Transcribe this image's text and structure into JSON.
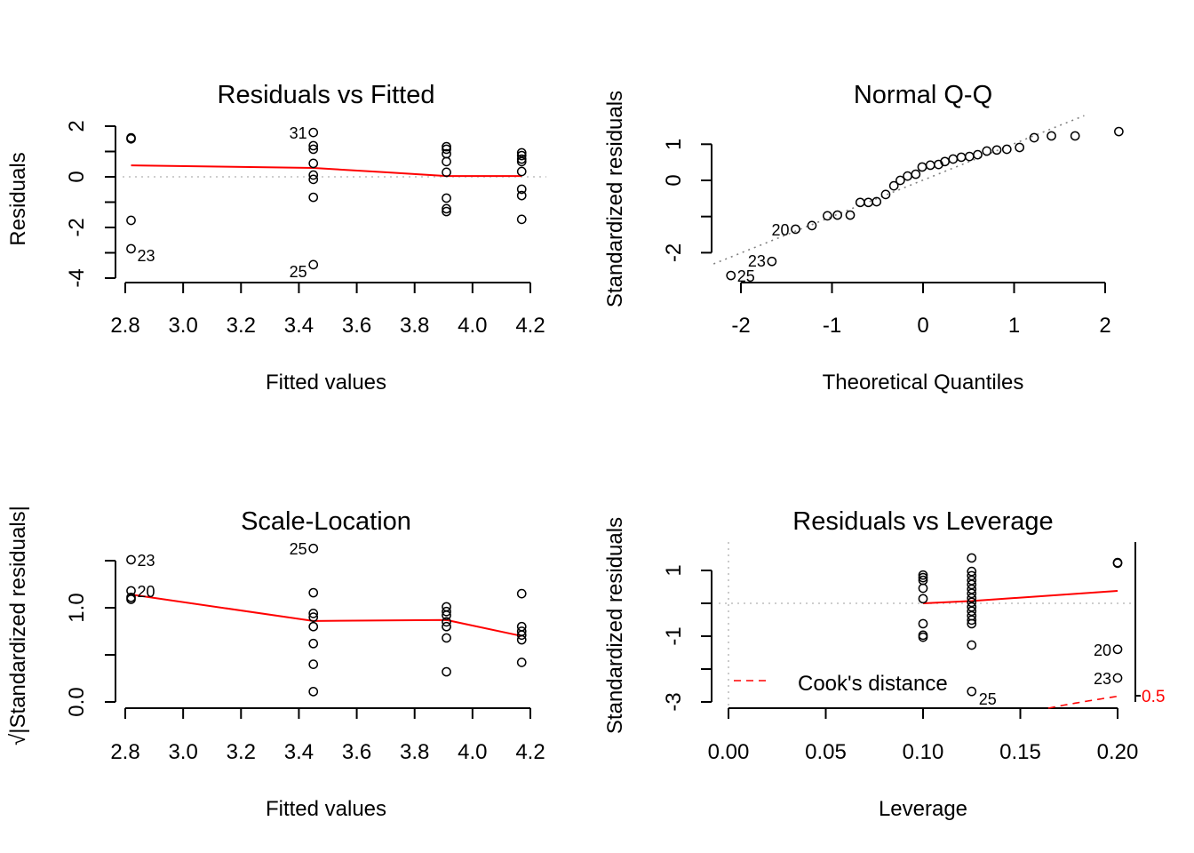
{
  "chart_data": [
    {
      "type": "scatter",
      "title": "Residuals vs Fitted",
      "xlabel": "Fitted values",
      "ylabel": "Residuals",
      "xticks": [
        2.8,
        3.0,
        3.2,
        3.4,
        3.6,
        3.8,
        4.0,
        4.2
      ],
      "xtick_labels": [
        "2.8",
        "3.0",
        "3.2",
        "3.4",
        "3.6",
        "3.8",
        "4.0",
        "4.2"
      ],
      "yticks": [
        -4,
        -3,
        -2,
        -1,
        0,
        1,
        2
      ],
      "ytick_labels": [
        "-4",
        "",
        "-2",
        "",
        "0",
        "",
        "2"
      ],
      "reference_line": {
        "y": 0,
        "style": "dotted",
        "color": "#bebebe"
      },
      "smoother": {
        "color": "#ff0000",
        "x": [
          2.82,
          3.15,
          3.45,
          3.7,
          3.91,
          4.17
        ],
        "y": [
          0.45,
          0.4,
          0.35,
          0.18,
          0.03,
          0.03
        ]
      },
      "points": [
        {
          "x": 2.82,
          "y": 1.54
        },
        {
          "x": 2.82,
          "y": 1.5
        },
        {
          "x": 2.82,
          "y": -1.72
        },
        {
          "x": 2.82,
          "y": -2.84,
          "label": "23"
        },
        {
          "x": 3.45,
          "y": 1.75,
          "label": "31"
        },
        {
          "x": 3.45,
          "y": 1.23
        },
        {
          "x": 3.45,
          "y": 1.09
        },
        {
          "x": 3.45,
          "y": 0.53
        },
        {
          "x": 3.45,
          "y": 0.07
        },
        {
          "x": 3.45,
          "y": -0.1
        },
        {
          "x": 3.45,
          "y": -0.81
        },
        {
          "x": 3.45,
          "y": -3.47,
          "label": "25"
        },
        {
          "x": 3.91,
          "y": 1.19
        },
        {
          "x": 3.91,
          "y": 1.09
        },
        {
          "x": 3.91,
          "y": 0.91
        },
        {
          "x": 3.91,
          "y": 0.6
        },
        {
          "x": 3.91,
          "y": 0.18
        },
        {
          "x": 3.91,
          "y": -0.84
        },
        {
          "x": 3.91,
          "y": -1.26
        },
        {
          "x": 3.91,
          "y": -1.37
        },
        {
          "x": 4.17,
          "y": 0.95
        },
        {
          "x": 4.17,
          "y": 0.84
        },
        {
          "x": 4.17,
          "y": 0.7
        },
        {
          "x": 4.17,
          "y": 0.6
        },
        {
          "x": 4.17,
          "y": 0.21
        },
        {
          "x": 4.17,
          "y": -0.49
        },
        {
          "x": 4.17,
          "y": -0.74
        },
        {
          "x": 4.17,
          "y": -1.68
        }
      ]
    },
    {
      "type": "scatter",
      "title": "Normal Q-Q",
      "xlabel": "Theoretical Quantiles",
      "ylabel": "Standardized residuals",
      "xticks": [
        -2,
        -1,
        0,
        1,
        2
      ],
      "xtick_labels": [
        "-2",
        "-1",
        "0",
        "1",
        "2"
      ],
      "yticks": [
        -2,
        -1,
        0,
        1
      ],
      "ytick_labels": [
        "-2",
        "",
        "0",
        "1"
      ],
      "reference_line": {
        "x": [
          -2.3,
          1.77
        ],
        "y": [
          -2.31,
          1.79
        ],
        "style": "dotted",
        "color": "#808080"
      },
      "points": [
        {
          "x": -2.11,
          "y": -2.63,
          "label": "25"
        },
        {
          "x": -1.66,
          "y": -2.24,
          "label": "23"
        },
        {
          "x": -1.4,
          "y": -1.35,
          "label": "20"
        },
        {
          "x": -1.22,
          "y": -1.25
        },
        {
          "x": -1.05,
          "y": -0.98
        },
        {
          "x": -0.94,
          "y": -0.96
        },
        {
          "x": -0.8,
          "y": -0.96
        },
        {
          "x": -0.69,
          "y": -0.61
        },
        {
          "x": -0.6,
          "y": -0.61
        },
        {
          "x": -0.51,
          "y": -0.59
        },
        {
          "x": -0.41,
          "y": -0.39
        },
        {
          "x": -0.32,
          "y": -0.15
        },
        {
          "x": -0.25,
          "y": 0.0
        },
        {
          "x": -0.17,
          "y": 0.12
        },
        {
          "x": -0.08,
          "y": 0.17
        },
        {
          "x": -0.01,
          "y": 0.37
        },
        {
          "x": 0.08,
          "y": 0.42
        },
        {
          "x": 0.17,
          "y": 0.44
        },
        {
          "x": 0.24,
          "y": 0.52
        },
        {
          "x": 0.33,
          "y": 0.59
        },
        {
          "x": 0.42,
          "y": 0.64
        },
        {
          "x": 0.51,
          "y": 0.66
        },
        {
          "x": 0.6,
          "y": 0.71
        },
        {
          "x": 0.7,
          "y": 0.81
        },
        {
          "x": 0.81,
          "y": 0.84
        },
        {
          "x": 0.92,
          "y": 0.86
        },
        {
          "x": 1.06,
          "y": 0.91
        },
        {
          "x": 1.22,
          "y": 1.18
        },
        {
          "x": 1.41,
          "y": 1.23
        },
        {
          "x": 1.67,
          "y": 1.23
        },
        {
          "x": 2.15,
          "y": 1.35
        }
      ]
    },
    {
      "type": "scatter",
      "title": "Scale-Location",
      "xlabel": "Fitted values",
      "ylabel": "√|Standardized residuals|",
      "xticks": [
        2.8,
        3.0,
        3.2,
        3.4,
        3.6,
        3.8,
        4.0,
        4.2
      ],
      "xtick_labels": [
        "2.8",
        "3.0",
        "3.2",
        "3.4",
        "3.6",
        "3.8",
        "4.0",
        "4.2"
      ],
      "yticks": [
        0,
        0.5,
        1.0,
        1.5
      ],
      "ytick_labels": [
        "0.0",
        "",
        "1.0",
        ""
      ],
      "smoother": {
        "color": "#ff0000",
        "x": [
          2.82,
          3.45,
          3.91,
          4.17
        ],
        "y": [
          1.14,
          0.86,
          0.87,
          0.7
        ]
      },
      "points": [
        {
          "x": 2.82,
          "y": 1.51,
          "label": "23"
        },
        {
          "x": 2.82,
          "y": 1.18,
          "label": "20"
        },
        {
          "x": 2.82,
          "y": 1.11
        },
        {
          "x": 2.82,
          "y": 1.09
        },
        {
          "x": 3.45,
          "y": 1.63,
          "label": "25"
        },
        {
          "x": 3.45,
          "y": 1.16
        },
        {
          "x": 3.45,
          "y": 0.94
        },
        {
          "x": 3.45,
          "y": 0.9
        },
        {
          "x": 3.45,
          "y": 0.8
        },
        {
          "x": 3.45,
          "y": 0.62
        },
        {
          "x": 3.45,
          "y": 0.4
        },
        {
          "x": 3.45,
          "y": 0.11
        },
        {
          "x": 3.91,
          "y": 1.01
        },
        {
          "x": 3.91,
          "y": 0.96
        },
        {
          "x": 3.91,
          "y": 0.92
        },
        {
          "x": 3.91,
          "y": 0.85
        },
        {
          "x": 3.91,
          "y": 0.8
        },
        {
          "x": 3.91,
          "y": 0.68
        },
        {
          "x": 3.91,
          "y": 0.32
        },
        {
          "x": 4.17,
          "y": 1.15
        },
        {
          "x": 4.17,
          "y": 0.8
        },
        {
          "x": 4.17,
          "y": 0.75
        },
        {
          "x": 4.17,
          "y": 0.71
        },
        {
          "x": 4.17,
          "y": 0.66
        },
        {
          "x": 4.17,
          "y": 0.42
        }
      ]
    },
    {
      "type": "scatter",
      "title": "Residuals vs Leverage",
      "xlabel": "Leverage",
      "ylabel": "Standardized residuals",
      "xticks": [
        0.0,
        0.05,
        0.1,
        0.15,
        0.2
      ],
      "xtick_labels": [
        "0.00",
        "0.05",
        "0.10",
        "0.15",
        "0.20"
      ],
      "yticks": [
        -3,
        -2,
        -1,
        0,
        1
      ],
      "ytick_labels": [
        "-3",
        "",
        "-1",
        "",
        "1"
      ],
      "reference_lines": [
        {
          "x": 0,
          "style": "dotted",
          "color": "#bebebe"
        },
        {
          "y": 0,
          "style": "dotted",
          "color": "#bebebe"
        }
      ],
      "smoother": {
        "color": "#ff0000",
        "x": [
          0.1,
          0.125,
          0.2
        ],
        "y": [
          0.0,
          0.07,
          0.38
        ]
      },
      "cooks_distance": {
        "legend": "Cook's distance",
        "levels": [
          0.5
        ],
        "level_labels": [
          "0.5"
        ],
        "color": "#ff0000",
        "style": "dashed"
      },
      "legend_position": "bottom-left",
      "points": [
        {
          "x": 0.1,
          "y": 0.86
        },
        {
          "x": 0.1,
          "y": 0.78
        },
        {
          "x": 0.1,
          "y": 0.7
        },
        {
          "x": 0.1,
          "y": 0.46
        },
        {
          "x": 0.1,
          "y": 0.14
        },
        {
          "x": 0.1,
          "y": -0.62
        },
        {
          "x": 0.1,
          "y": -0.97
        },
        {
          "x": 0.1,
          "y": -1.03
        },
        {
          "x": 0.125,
          "y": 1.38
        },
        {
          "x": 0.125,
          "y": 0.97
        },
        {
          "x": 0.125,
          "y": 0.84
        },
        {
          "x": 0.125,
          "y": 0.7
        },
        {
          "x": 0.125,
          "y": 0.57
        },
        {
          "x": 0.125,
          "y": 0.43
        },
        {
          "x": 0.125,
          "y": 0.3
        },
        {
          "x": 0.125,
          "y": 0.16
        },
        {
          "x": 0.125,
          "y": 0.03
        },
        {
          "x": 0.125,
          "y": -0.11
        },
        {
          "x": 0.125,
          "y": -0.24
        },
        {
          "x": 0.125,
          "y": -0.38
        },
        {
          "x": 0.125,
          "y": -0.51
        },
        {
          "x": 0.125,
          "y": -0.62
        },
        {
          "x": 0.125,
          "y": -1.27
        },
        {
          "x": 0.125,
          "y": -2.68,
          "label": "25"
        },
        {
          "x": 0.2,
          "y": 1.24
        },
        {
          "x": 0.2,
          "y": 1.22
        },
        {
          "x": 0.2,
          "y": -1.4,
          "label": "20"
        },
        {
          "x": 0.2,
          "y": -2.27,
          "label": "23"
        }
      ]
    }
  ]
}
